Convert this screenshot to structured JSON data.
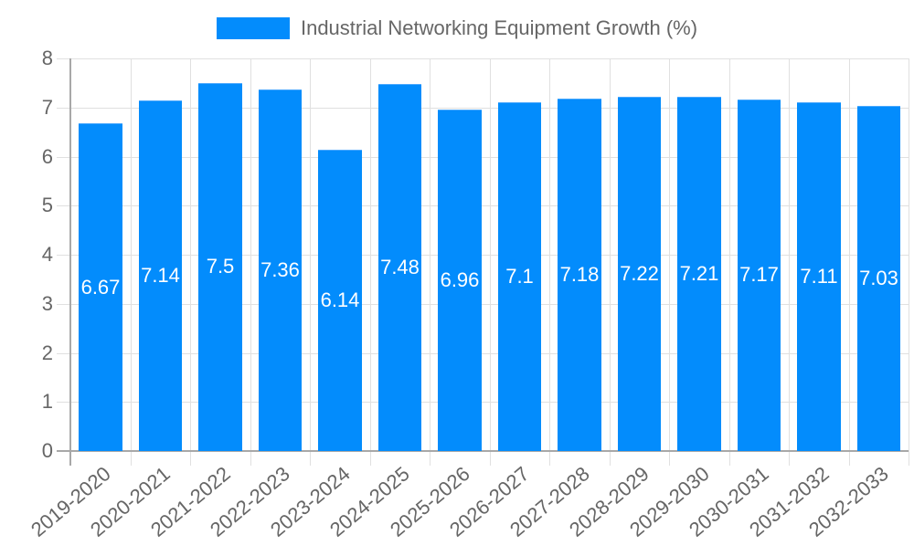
{
  "chart_data": {
    "type": "bar",
    "title": "",
    "xlabel": "",
    "ylabel": "",
    "ylim": [
      0,
      8
    ],
    "yticks": [
      0,
      1,
      2,
      3,
      4,
      5,
      6,
      7,
      8
    ],
    "grid": true,
    "legend_position": "top",
    "categories": [
      "2019-2020",
      "2020-2021",
      "2021-2022",
      "2022-2023",
      "2023-2024",
      "2024-2025",
      "2025-2026",
      "2026-2027",
      "2027-2028",
      "2028-2029",
      "2029-2030",
      "2030-2031",
      "2031-2032",
      "2032-2033"
    ],
    "series": [
      {
        "name": "Industrial Networking Equipment Growth (%)",
        "color": "#038cfc",
        "values": [
          6.67,
          7.14,
          7.5,
          7.36,
          6.14,
          7.48,
          6.96,
          7.1,
          7.18,
          7.22,
          7.21,
          7.17,
          7.11,
          7.03
        ],
        "labels": [
          "6.67",
          "7.14",
          "7.5",
          "7.36",
          "6.14",
          "7.48",
          "6.96",
          "7.1",
          "7.18",
          "7.22",
          "7.21",
          "7.17",
          "7.11",
          "7.03"
        ]
      }
    ]
  },
  "legend": {
    "label": "Industrial Networking Equipment Growth (%)"
  }
}
